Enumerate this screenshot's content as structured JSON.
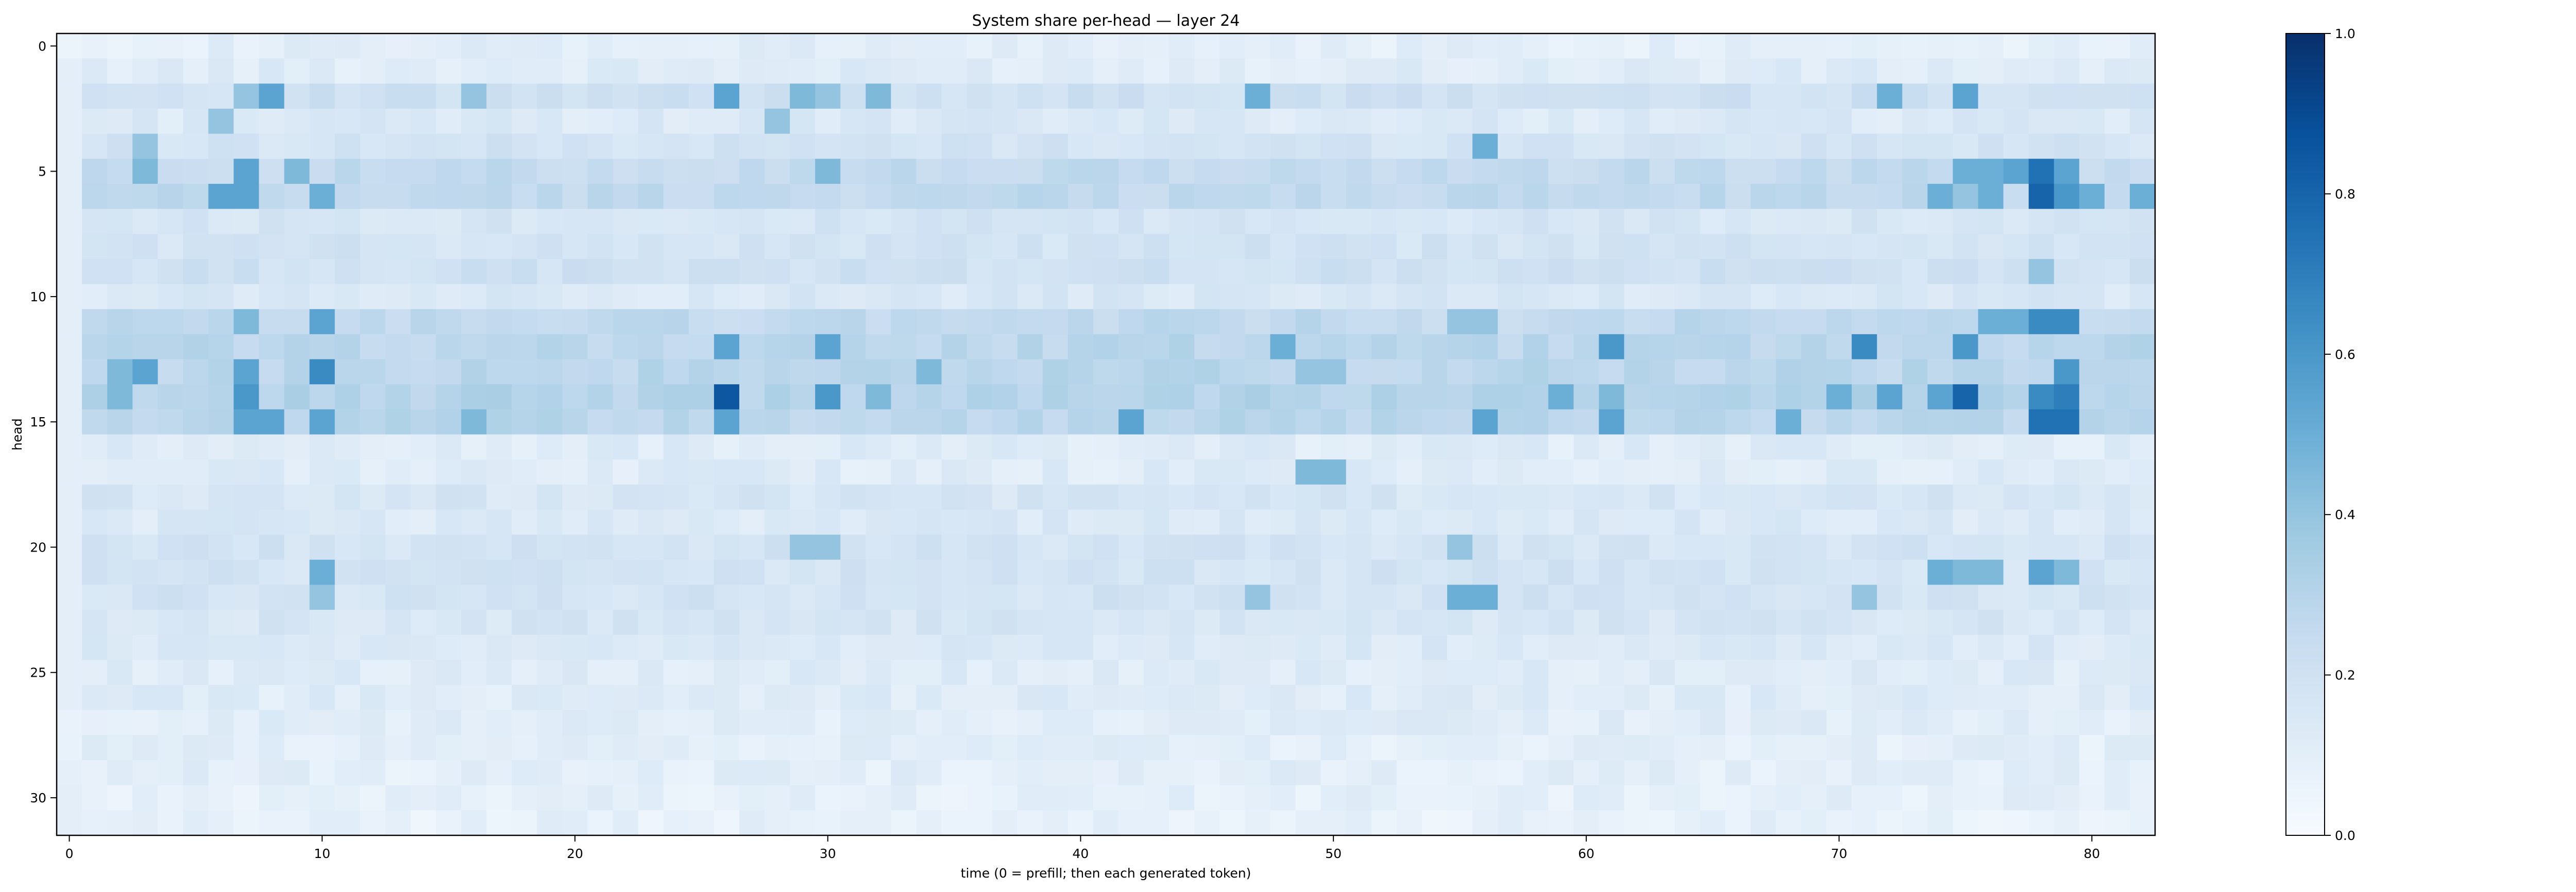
{
  "chart_data": {
    "type": "heatmap",
    "title": "System share per-head — layer 24",
    "xlabel": "time (0 = prefill; then each generated token)",
    "ylabel": "head",
    "n_time_steps": 83,
    "n_heads": 32,
    "xlim": [
      -0.5,
      82.5
    ],
    "ylim": [
      31.5,
      -0.5
    ],
    "x_ticks": [
      0,
      10,
      20,
      30,
      40,
      50,
      60,
      70,
      80
    ],
    "y_ticks": [
      0,
      5,
      10,
      15,
      20,
      25,
      30
    ],
    "colormap": "Blues",
    "color_min": "#f7fbff",
    "color_max": "#08306b",
    "colorbar": {
      "vmin": 0.0,
      "vmax": 1.0,
      "ticks": [
        0.0,
        0.2,
        0.4,
        0.6,
        0.8,
        1.0
      ],
      "tick_labels": [
        "0.0",
        "0.2",
        "0.4",
        "0.6",
        "0.8",
        "1.0"
      ]
    },
    "row_base_values": [
      0.1,
      0.12,
      0.2,
      0.14,
      0.18,
      0.25,
      0.26,
      0.17,
      0.18,
      0.2,
      0.15,
      0.26,
      0.28,
      0.28,
      0.3,
      0.28,
      0.12,
      0.12,
      0.16,
      0.14,
      0.18,
      0.18,
      0.18,
      0.16,
      0.14,
      0.12,
      0.12,
      0.11,
      0.1,
      0.1,
      0.09,
      0.08
    ],
    "highlighted_cells": [
      [
        2,
        8,
        0.55
      ],
      [
        2,
        7,
        0.4
      ],
      [
        2,
        16,
        0.4
      ],
      [
        2,
        26,
        0.55
      ],
      [
        2,
        29,
        0.45
      ],
      [
        2,
        30,
        0.4
      ],
      [
        2,
        32,
        0.45
      ],
      [
        2,
        47,
        0.5
      ],
      [
        2,
        72,
        0.5
      ],
      [
        2,
        75,
        0.55
      ],
      [
        3,
        6,
        0.4
      ],
      [
        3,
        28,
        0.4
      ],
      [
        4,
        3,
        0.4
      ],
      [
        4,
        56,
        0.5
      ],
      [
        5,
        3,
        0.45
      ],
      [
        5,
        7,
        0.55
      ],
      [
        5,
        9,
        0.45
      ],
      [
        5,
        30,
        0.45
      ],
      [
        5,
        75,
        0.5
      ],
      [
        5,
        76,
        0.5
      ],
      [
        5,
        77,
        0.55
      ],
      [
        5,
        78,
        0.75
      ],
      [
        5,
        79,
        0.55
      ],
      [
        6,
        6,
        0.55
      ],
      [
        6,
        7,
        0.55
      ],
      [
        6,
        10,
        0.5
      ],
      [
        6,
        74,
        0.5
      ],
      [
        6,
        75,
        0.4
      ],
      [
        6,
        76,
        0.5
      ],
      [
        6,
        78,
        0.8
      ],
      [
        6,
        79,
        0.6
      ],
      [
        6,
        80,
        0.5
      ],
      [
        6,
        82,
        0.5
      ],
      [
        9,
        78,
        0.4
      ],
      [
        11,
        7,
        0.45
      ],
      [
        11,
        10,
        0.55
      ],
      [
        11,
        55,
        0.4
      ],
      [
        11,
        56,
        0.4
      ],
      [
        11,
        76,
        0.5
      ],
      [
        11,
        77,
        0.5
      ],
      [
        11,
        78,
        0.65
      ],
      [
        11,
        79,
        0.65
      ],
      [
        12,
        26,
        0.55
      ],
      [
        12,
        30,
        0.55
      ],
      [
        12,
        48,
        0.5
      ],
      [
        12,
        61,
        0.6
      ],
      [
        12,
        71,
        0.65
      ],
      [
        12,
        75,
        0.6
      ],
      [
        13,
        2,
        0.45
      ],
      [
        13,
        3,
        0.55
      ],
      [
        13,
        7,
        0.55
      ],
      [
        13,
        10,
        0.65
      ],
      [
        13,
        34,
        0.45
      ],
      [
        13,
        49,
        0.4
      ],
      [
        13,
        50,
        0.4
      ],
      [
        13,
        79,
        0.6
      ],
      [
        14,
        2,
        0.45
      ],
      [
        14,
        7,
        0.6
      ],
      [
        14,
        26,
        0.85
      ],
      [
        14,
        30,
        0.6
      ],
      [
        14,
        32,
        0.45
      ],
      [
        14,
        59,
        0.5
      ],
      [
        14,
        61,
        0.45
      ],
      [
        14,
        70,
        0.5
      ],
      [
        14,
        72,
        0.55
      ],
      [
        14,
        74,
        0.55
      ],
      [
        14,
        75,
        0.8
      ],
      [
        14,
        78,
        0.65
      ],
      [
        14,
        79,
        0.7
      ],
      [
        15,
        7,
        0.55
      ],
      [
        15,
        8,
        0.55
      ],
      [
        15,
        10,
        0.55
      ],
      [
        15,
        16,
        0.45
      ],
      [
        15,
        26,
        0.55
      ],
      [
        15,
        42,
        0.55
      ],
      [
        15,
        56,
        0.55
      ],
      [
        15,
        61,
        0.55
      ],
      [
        15,
        68,
        0.5
      ],
      [
        15,
        78,
        0.75
      ],
      [
        15,
        79,
        0.75
      ],
      [
        17,
        49,
        0.45
      ],
      [
        17,
        50,
        0.45
      ],
      [
        20,
        29,
        0.4
      ],
      [
        20,
        30,
        0.4
      ],
      [
        20,
        55,
        0.4
      ],
      [
        21,
        10,
        0.5
      ],
      [
        21,
        74,
        0.5
      ],
      [
        21,
        75,
        0.45
      ],
      [
        21,
        76,
        0.45
      ],
      [
        21,
        78,
        0.55
      ],
      [
        21,
        79,
        0.45
      ],
      [
        22,
        10,
        0.4
      ],
      [
        22,
        55,
        0.5
      ],
      [
        22,
        56,
        0.5
      ],
      [
        22,
        47,
        0.4
      ],
      [
        22,
        71,
        0.4
      ]
    ],
    "grid": false,
    "legend": "colorbar-right"
  }
}
